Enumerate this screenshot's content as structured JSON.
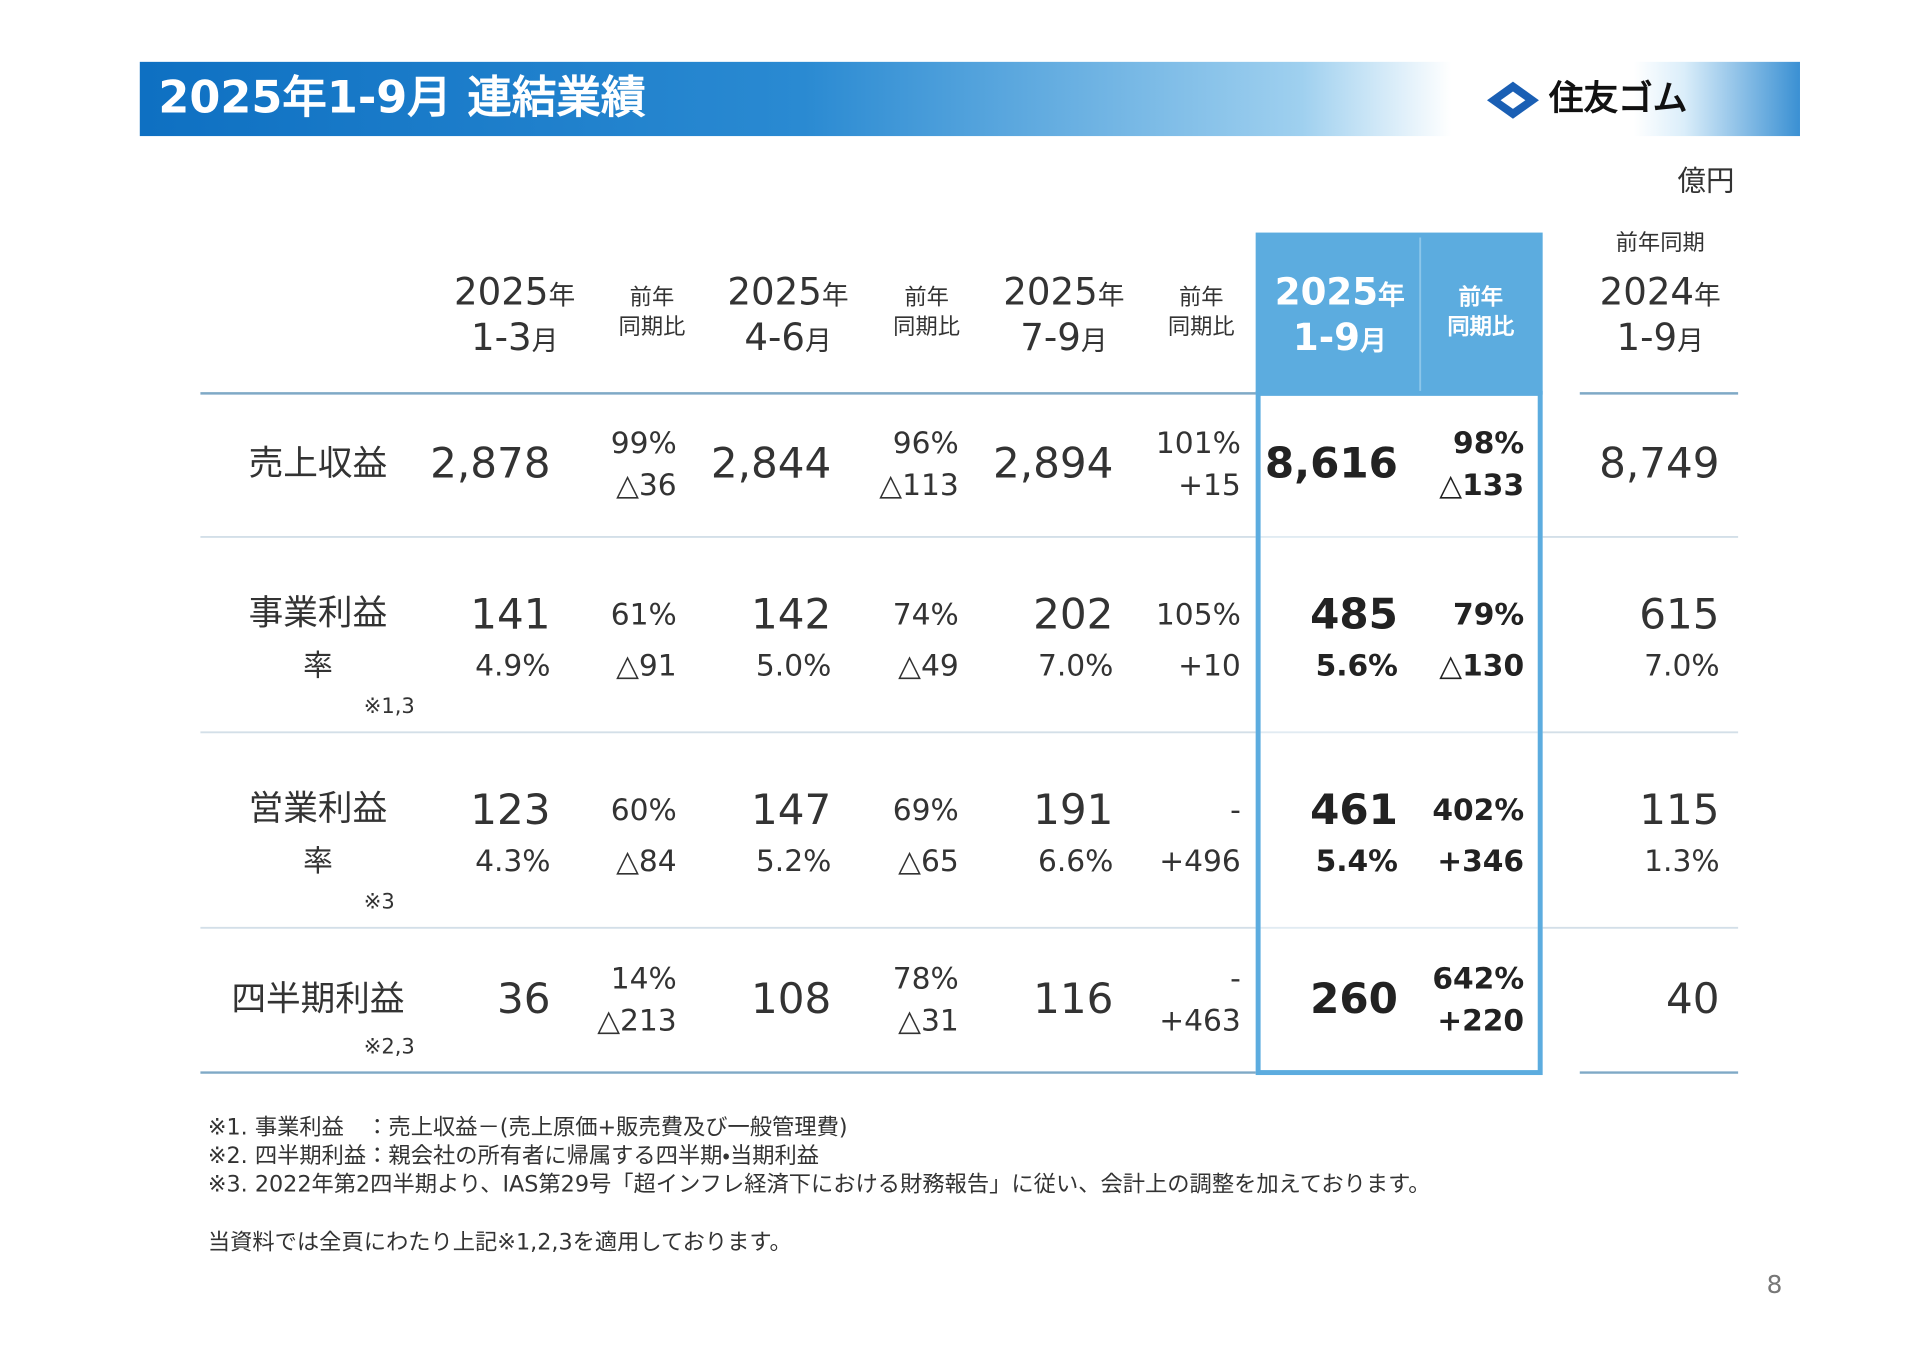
{
  "header": {
    "title": "2025年1-9月 連結業績",
    "logo": "住友ゴム"
  },
  "unit": "億円",
  "table": {
    "columns": [
      {
        "year": "2025年",
        "period": "1-3月"
      },
      {
        "line1": "前年",
        "line2": "同期比"
      },
      {
        "year": "2025年",
        "period": "4-6月"
      },
      {
        "line1": "前年",
        "line2": "同期比"
      },
      {
        "year": "2025年",
        "period": "7-9月"
      },
      {
        "line1": "前年",
        "line2": "同期比"
      },
      {
        "year": "2025年",
        "period": "1-9月"
      },
      {
        "line1": "前年",
        "line2": "同期比"
      },
      {
        "caption": "前年同期",
        "year": "2024年",
        "period": "1-9月"
      }
    ],
    "rows": [
      {
        "label": "売上収益",
        "cells": [
          [
            "2,878"
          ],
          [
            "99%",
            "△36"
          ],
          [
            "2,844"
          ],
          [
            "96%",
            "△113"
          ],
          [
            "2,894"
          ],
          [
            "101%",
            "+15"
          ],
          [
            "8,616"
          ],
          [
            "98%",
            "△133"
          ],
          [
            "8,749"
          ]
        ]
      },
      {
        "label": "事業利益",
        "rate_label": "率",
        "note": "※1,3",
        "cells": [
          [
            "141",
            "4.9%"
          ],
          [
            "61%",
            "△91"
          ],
          [
            "142",
            "5.0%"
          ],
          [
            "74%",
            "△49"
          ],
          [
            "202",
            "7.0%"
          ],
          [
            "105%",
            "+10"
          ],
          [
            "485",
            "5.6%"
          ],
          [
            "79%",
            "△130"
          ],
          [
            "615",
            "7.0%"
          ]
        ]
      },
      {
        "label": "営業利益",
        "rate_label": "率",
        "note": "※3",
        "cells": [
          [
            "123",
            "4.3%"
          ],
          [
            "60%",
            "△84"
          ],
          [
            "147",
            "5.2%"
          ],
          [
            "69%",
            "△65"
          ],
          [
            "191",
            "6.6%"
          ],
          [
            "-",
            "+496"
          ],
          [
            "461",
            "5.4%"
          ],
          [
            "402%",
            "+346"
          ],
          [
            "115",
            "1.3%"
          ]
        ]
      },
      {
        "label": "四半期利益",
        "note": "※2,3",
        "cells": [
          [
            "36"
          ],
          [
            "14%",
            "△213"
          ],
          [
            "108"
          ],
          [
            "78%",
            "△31"
          ],
          [
            "116"
          ],
          [
            "-",
            "+463"
          ],
          [
            "260"
          ],
          [
            "642%",
            "+220"
          ],
          [
            "40"
          ]
        ]
      }
    ]
  },
  "notes": [
    "※1. 事業利益　：売上収益－(売上原価+販売費及び一般管理費)",
    "※2. 四半期利益：親会社の所有者に帰属する四半期・当期利益",
    "※3. 2022年第2四半期より、IAS第29号「超インフレ経済下における財務報告」に従い、会計上の調整を加えております。",
    "当資料では全頁にわたり上記※1,2,3を適用しております。"
  ],
  "page_number": "8"
}
